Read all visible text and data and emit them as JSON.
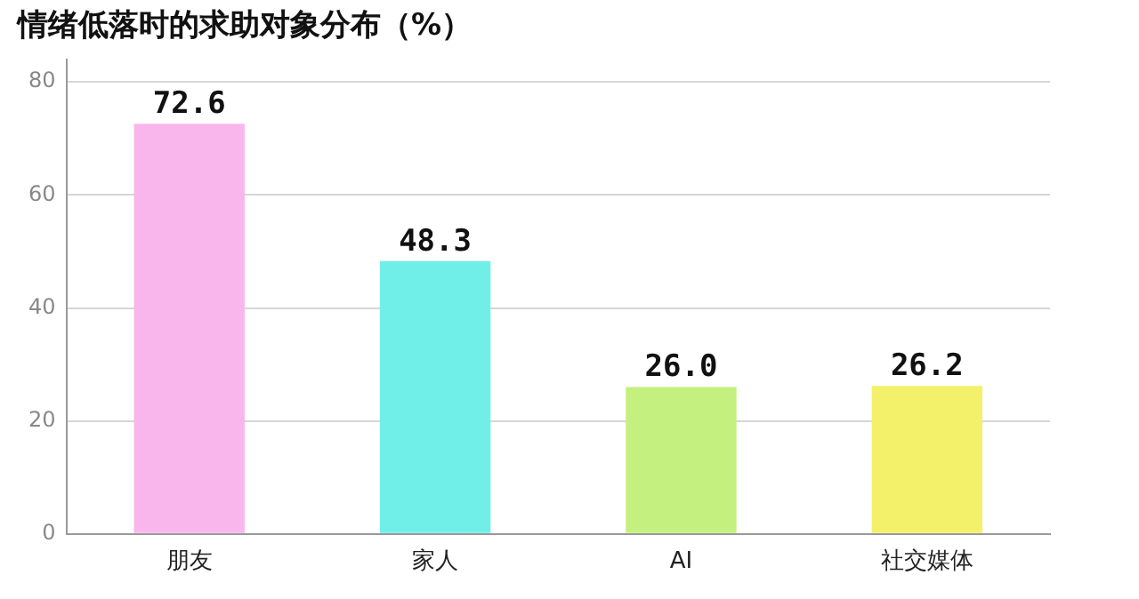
{
  "chart_data": {
    "type": "bar",
    "title": "情绪低落时的求助对象分布（%）",
    "categories": [
      "朋友",
      "家人",
      "AI",
      "社交媒体"
    ],
    "values": [
      72.6,
      48.3,
      26.0,
      26.2
    ],
    "colors": [
      "#f9b6ec",
      "#70efe8",
      "#c4f080",
      "#f3f06a"
    ],
    "value_labels": [
      "72.6",
      "48.3",
      "26.0",
      "26.2"
    ],
    "ylim": [
      0,
      84
    ],
    "yticks": [
      0,
      20,
      40,
      60,
      80
    ],
    "grid": "y",
    "legend": false
  }
}
